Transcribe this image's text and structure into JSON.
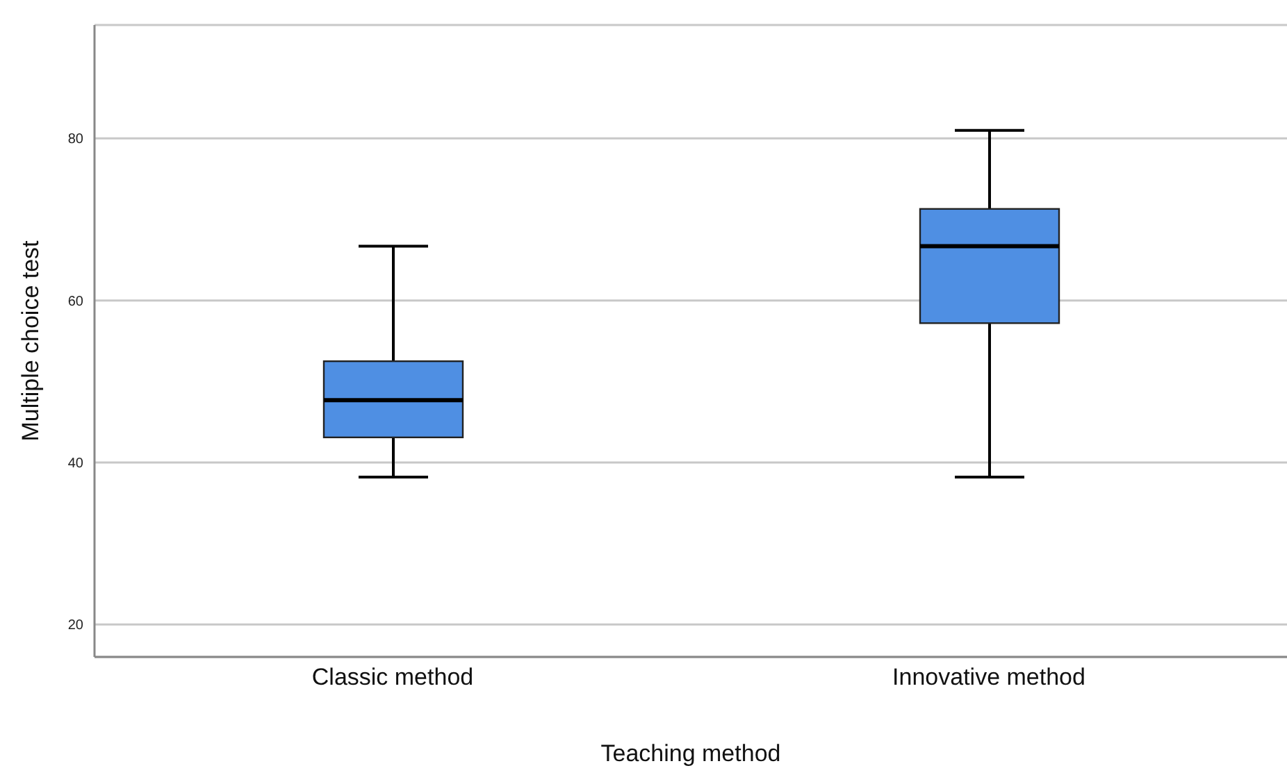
{
  "chart_data": {
    "type": "box",
    "xlabel": "Teaching method",
    "ylabel": "Multiple choice test",
    "categories": [
      "Classic method",
      "Innovative method"
    ],
    "boxes": [
      {
        "low": 38.2,
        "q1": 43.1,
        "median": 47.7,
        "q3": 52.5,
        "high": 66.7
      },
      {
        "low": 38.2,
        "q1": 57.2,
        "median": 66.7,
        "q3": 71.3,
        "high": 81
      }
    ],
    "color": "#4f8fe3",
    "ylim": [
      16,
      94
    ],
    "yticks": [
      20,
      40,
      60,
      80
    ],
    "grid": "y"
  }
}
